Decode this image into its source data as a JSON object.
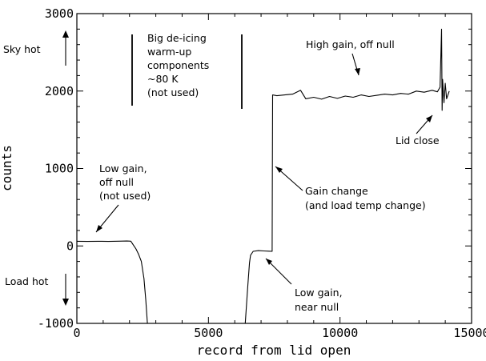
{
  "chart_data": {
    "type": "line",
    "title": "",
    "xlabel": "record from lid open",
    "ylabel": "counts",
    "xlim": [
      0,
      15000
    ],
    "ylim": [
      -1000,
      3000
    ],
    "x_ticks": [
      0,
      5000,
      10000,
      15000
    ],
    "x_tick_labels": [
      "0",
      "5000",
      "10000",
      "15000"
    ],
    "y_ticks": [
      -1000,
      0,
      1000,
      2000,
      3000
    ],
    "y_tick_labels": [
      "-1000",
      "0",
      "1000",
      "2000",
      "3000"
    ],
    "grid": false,
    "series": [
      {
        "segments": [
          [
            [
              0,
              60
            ],
            [
              400,
              58
            ],
            [
              800,
              60
            ],
            [
              1200,
              58
            ],
            [
              1600,
              62
            ],
            [
              1900,
              64
            ],
            [
              2050,
              62
            ],
            [
              2150,
              10
            ],
            [
              2250,
              -40
            ],
            [
              2350,
              -110
            ],
            [
              2450,
              -200
            ],
            [
              2550,
              -420
            ],
            [
              2620,
              -700
            ],
            [
              2680,
              -1000
            ]
          ],
          [
            [
              6400,
              -1000
            ],
            [
              6500,
              -500
            ],
            [
              6560,
              -220
            ],
            [
              6600,
              -120
            ],
            [
              6700,
              -70
            ],
            [
              6900,
              -60
            ],
            [
              7100,
              -65
            ],
            [
              7300,
              -68
            ],
            [
              7420,
              -70
            ],
            [
              7430,
              1000
            ],
            [
              7440,
              1950
            ],
            [
              7600,
              1940
            ],
            [
              7900,
              1950
            ],
            [
              8200,
              1960
            ],
            [
              8500,
              2010
            ],
            [
              8700,
              1900
            ],
            [
              9000,
              1920
            ],
            [
              9300,
              1895
            ],
            [
              9600,
              1930
            ],
            [
              9900,
              1905
            ],
            [
              10200,
              1935
            ],
            [
              10500,
              1920
            ],
            [
              10800,
              1950
            ],
            [
              11100,
              1930
            ],
            [
              11400,
              1945
            ],
            [
              11700,
              1960
            ],
            [
              12000,
              1950
            ],
            [
              12300,
              1970
            ],
            [
              12600,
              1960
            ],
            [
              12900,
              2000
            ],
            [
              13200,
              1985
            ],
            [
              13500,
              2010
            ],
            [
              13700,
              1990
            ],
            [
              13800,
              2050
            ],
            [
              13860,
              2800
            ],
            [
              13880,
              1750
            ],
            [
              13900,
              2150
            ],
            [
              13950,
              1850
            ],
            [
              14000,
              2100
            ],
            [
              14050,
              1900
            ],
            [
              14150,
              2000
            ]
          ]
        ]
      }
    ],
    "annotations": [
      {
        "id": "de_icing",
        "lines": [
          "Big de-icing",
          "warm-up",
          "components",
          "~80 K",
          "(not used)"
        ]
      },
      {
        "id": "high_gain",
        "lines": [
          "High gain, off null"
        ]
      },
      {
        "id": "lid_close",
        "lines": [
          "Lid close"
        ]
      },
      {
        "id": "gain_change",
        "lines": [
          "Gain change",
          "(and load temp change)"
        ]
      },
      {
        "id": "low_gain_off",
        "lines": [
          "Low gain,",
          "off null",
          "(not used)"
        ]
      },
      {
        "id": "low_gain_near",
        "lines": [
          "Low gain,",
          "near null"
        ]
      },
      {
        "id": "sky_hot",
        "lines": [
          "Sky hot"
        ]
      },
      {
        "id": "load_hot",
        "lines": [
          "Load hot"
        ]
      }
    ]
  }
}
